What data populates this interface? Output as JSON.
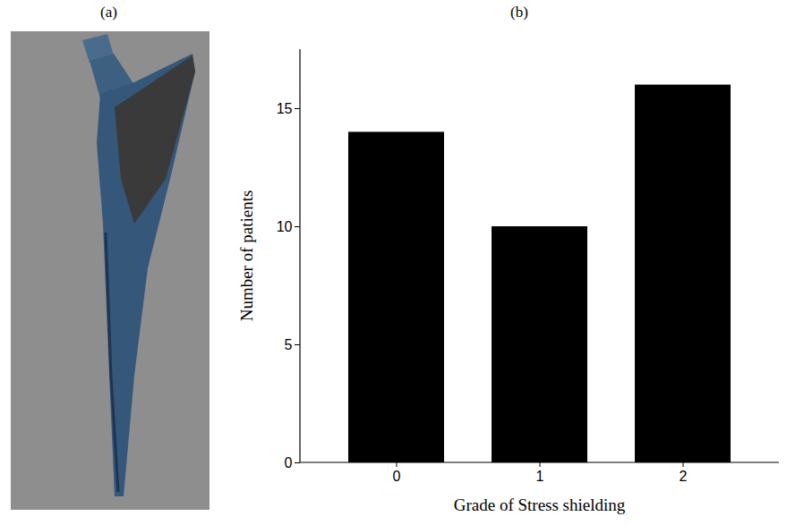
{
  "panel_labels": [
    "(a)",
    "(b)"
  ],
  "chart_data": {
    "type": "bar",
    "categories": [
      0,
      1,
      2
    ],
    "values": [
      14,
      10,
      16
    ],
    "color": "#000000",
    "xlabel": "Grade of Stress shielding",
    "ylabel": "Number of patients",
    "ylim": [
      0,
      17.5
    ],
    "yticks": [
      0,
      5,
      10,
      15
    ],
    "grid": false
  }
}
